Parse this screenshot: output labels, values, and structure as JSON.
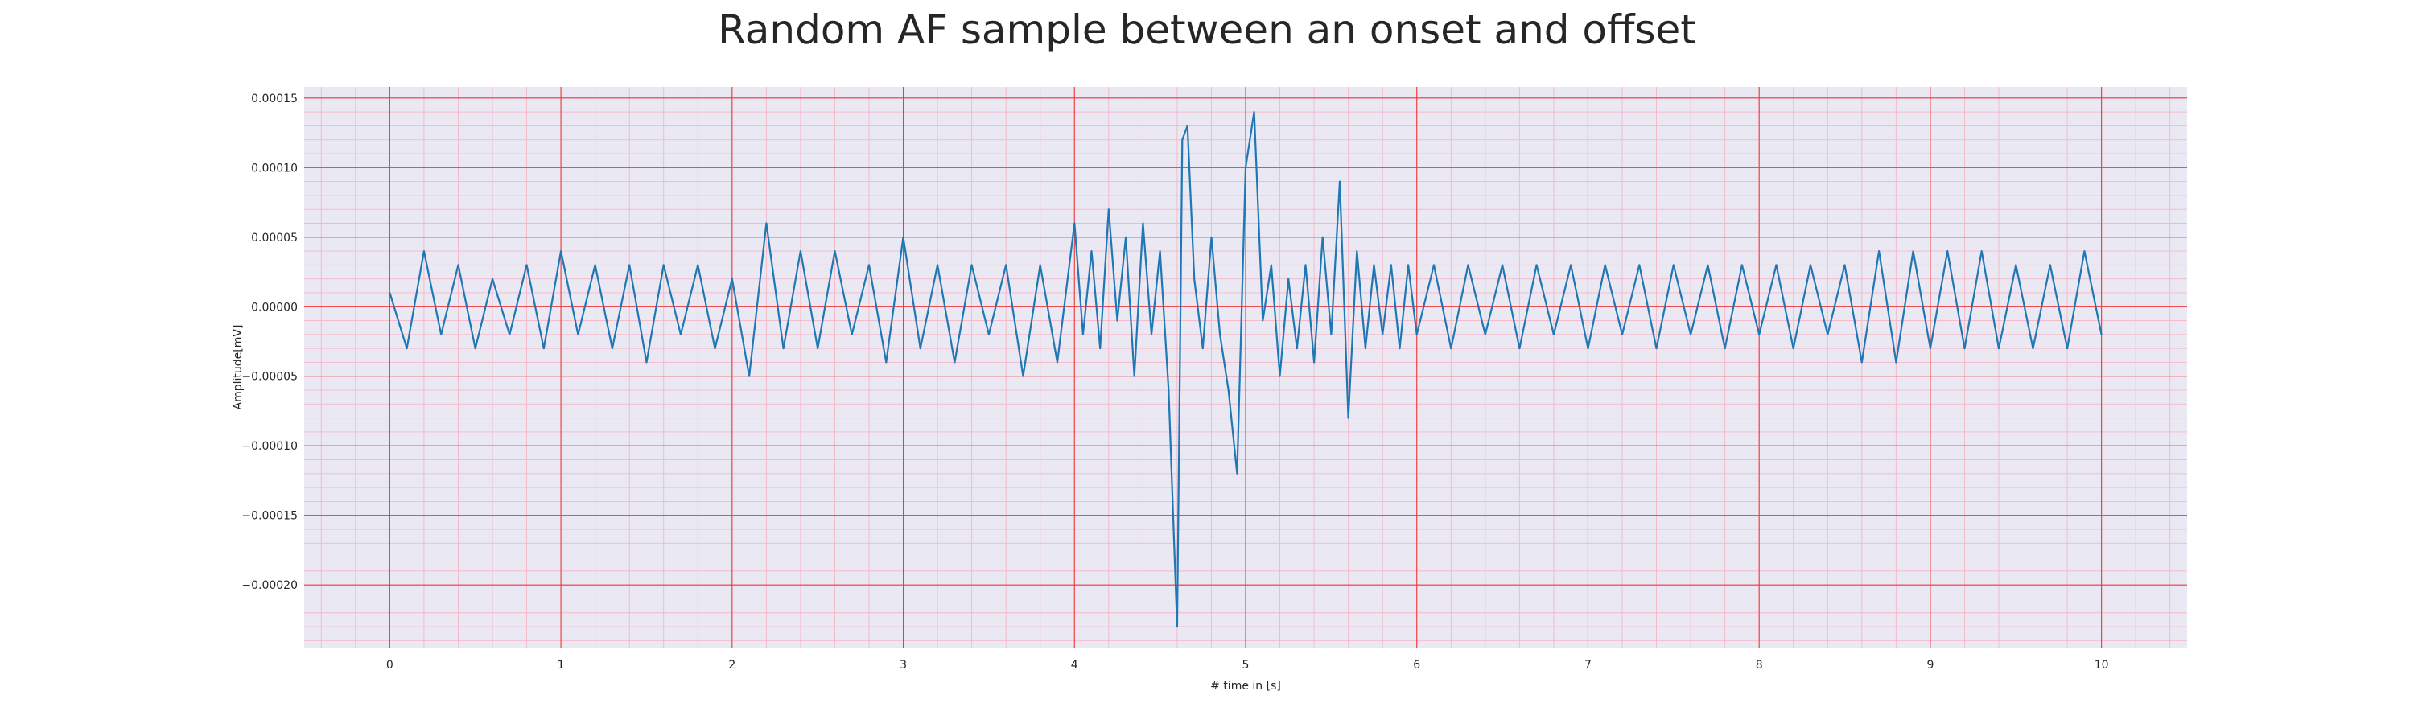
{
  "chart_data": {
    "type": "line",
    "title": "Random AF sample between an onset and offset",
    "xlabel": "# time in [s]",
    "ylabel": "Amplitude[mV]",
    "xlim": [
      -0.5,
      10.5
    ],
    "ylim": [
      -0.000245,
      0.000158
    ],
    "x_ticks": [
      0,
      1,
      2,
      3,
      4,
      5,
      6,
      7,
      8,
      9,
      10
    ],
    "x_tick_labels": [
      "0",
      "1",
      "2",
      "3",
      "4",
      "5",
      "6",
      "7",
      "8",
      "9",
      "10"
    ],
    "y_ticks": [
      0.00015,
      0.0001,
      5e-05,
      0.0,
      -5e-05,
      -0.0001,
      -0.00015,
      -0.0002
    ],
    "y_tick_labels": [
      "0.00015",
      "0.00010",
      "0.00005",
      "0.00000",
      "−0.00005",
      "−0.00010",
      "−0.00015",
      "−0.00020"
    ],
    "grid": "major-and-minor",
    "series": [
      {
        "color": "#1f77b4",
        "x": [
          0,
          0.1,
          0.2,
          0.3,
          0.4,
          0.5,
          0.6,
          0.7,
          0.8,
          0.9,
          1.0,
          1.1,
          1.2,
          1.3,
          1.4,
          1.5,
          1.6,
          1.7,
          1.8,
          1.9,
          2.0,
          2.1,
          2.2,
          2.3,
          2.4,
          2.5,
          2.6,
          2.7,
          2.8,
          2.9,
          3.0,
          3.1,
          3.2,
          3.3,
          3.4,
          3.5,
          3.6,
          3.7,
          3.8,
          3.9,
          4.0,
          4.05,
          4.1,
          4.15,
          4.2,
          4.25,
          4.3,
          4.35,
          4.4,
          4.45,
          4.5,
          4.55,
          4.6,
          4.63,
          4.66,
          4.7,
          4.75,
          4.8,
          4.85,
          4.9,
          4.95,
          5.0,
          5.05,
          5.1,
          5.15,
          5.2,
          5.25,
          5.3,
          5.35,
          5.4,
          5.45,
          5.5,
          5.55,
          5.6,
          5.65,
          5.7,
          5.75,
          5.8,
          5.85,
          5.9,
          5.95,
          6.0,
          6.1,
          6.2,
          6.3,
          6.4,
          6.5,
          6.6,
          6.7,
          6.8,
          6.9,
          7.0,
          7.1,
          7.2,
          7.3,
          7.4,
          7.5,
          7.6,
          7.7,
          7.8,
          7.9,
          8.0,
          8.1,
          8.2,
          8.3,
          8.4,
          8.5,
          8.6,
          8.7,
          8.8,
          8.9,
          9.0,
          9.1,
          9.2,
          9.3,
          9.4,
          9.5,
          9.6,
          9.7,
          9.8,
          9.9,
          10.0
        ],
        "y": [
          1e-05,
          -3e-05,
          4e-05,
          -2e-05,
          3e-05,
          -3e-05,
          2e-05,
          -2e-05,
          3e-05,
          -3e-05,
          4e-05,
          -2e-05,
          3e-05,
          -3e-05,
          3e-05,
          -4e-05,
          3e-05,
          -2e-05,
          3e-05,
          -3e-05,
          2e-05,
          -5e-05,
          6e-05,
          -3e-05,
          4e-05,
          -3e-05,
          4e-05,
          -2e-05,
          3e-05,
          -4e-05,
          5e-05,
          -3e-05,
          3e-05,
          -4e-05,
          3e-05,
          -2e-05,
          3e-05,
          -5e-05,
          3e-05,
          -4e-05,
          6e-05,
          -2e-05,
          4e-05,
          -3e-05,
          7e-05,
          -1e-05,
          5e-05,
          -5e-05,
          6e-05,
          -2e-05,
          4e-05,
          -6e-05,
          -0.00023,
          0.00012,
          0.00013,
          2e-05,
          -3e-05,
          5e-05,
          -2e-05,
          -6e-05,
          -0.00012,
          0.0001,
          0.00014,
          -1e-05,
          3e-05,
          -5e-05,
          2e-05,
          -3e-05,
          3e-05,
          -4e-05,
          5e-05,
          -2e-05,
          9e-05,
          -8e-05,
          4e-05,
          -3e-05,
          3e-05,
          -2e-05,
          3e-05,
          -3e-05,
          3e-05,
          -2e-05,
          3e-05,
          -3e-05,
          3e-05,
          -2e-05,
          3e-05,
          -3e-05,
          3e-05,
          -2e-05,
          3e-05,
          -3e-05,
          3e-05,
          -2e-05,
          3e-05,
          -3e-05,
          3e-05,
          -2e-05,
          3e-05,
          -3e-05,
          3e-05,
          -2e-05,
          3e-05,
          -3e-05,
          3e-05,
          -2e-05,
          3e-05,
          -4e-05,
          4e-05,
          -4e-05,
          4e-05,
          -3e-05,
          4e-05,
          -3e-05,
          4e-05,
          -3e-05,
          3e-05,
          -3e-05,
          3e-05,
          -3e-05,
          4e-05,
          -2e-05
        ]
      }
    ]
  }
}
